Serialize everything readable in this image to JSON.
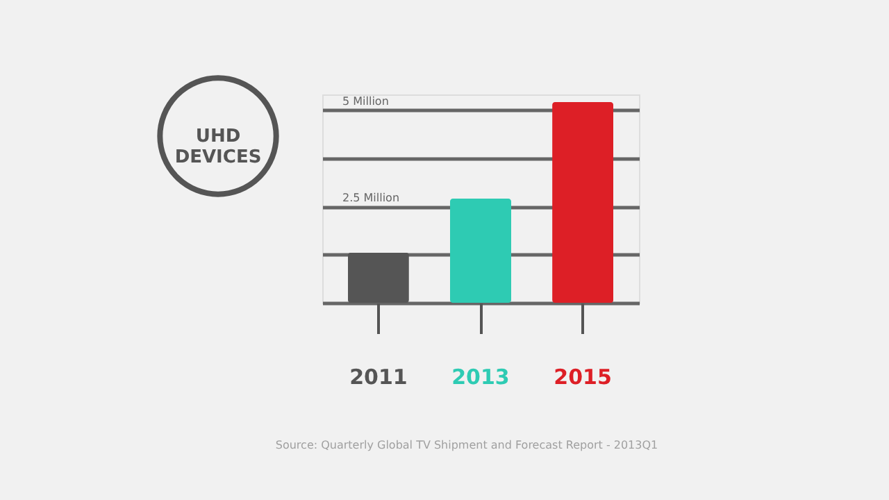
{
  "chart_data": {
    "type": "bar",
    "title": "UHD DEVICES",
    "categories": [
      "2011",
      "2013",
      "2015"
    ],
    "values": [
      1.3,
      2.7,
      5.2
    ],
    "colors": [
      "#555555",
      "#2ecbb3",
      "#dd1f26"
    ],
    "ylim": [
      0,
      5.4
    ],
    "yticks": [
      {
        "value": 0,
        "label": null
      },
      {
        "value": 1.25,
        "label": null
      },
      {
        "value": 2.5,
        "label": "2.5 Million"
      },
      {
        "value": 3.75,
        "label": null
      },
      {
        "value": 5,
        "label": "5 Million"
      }
    ],
    "grid": "y",
    "annotations": [
      "Source: Quarterly Global TV Shipment and Forecast Report - 2013Q1"
    ]
  }
}
